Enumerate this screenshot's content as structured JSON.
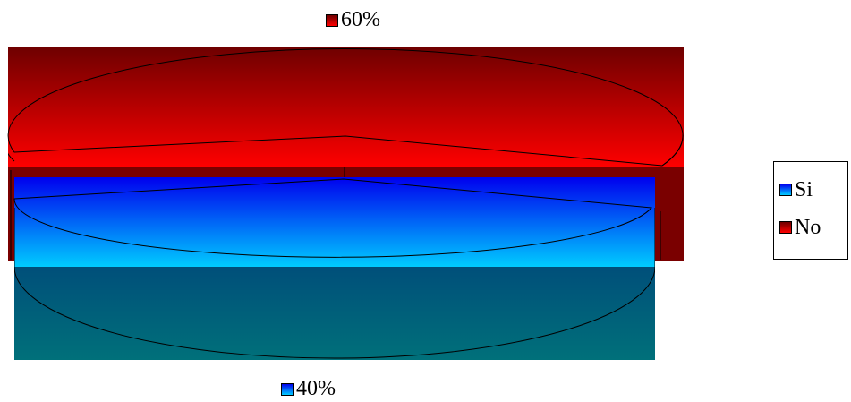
{
  "chart_data": {
    "type": "pie",
    "style": "3d-exploded",
    "slices": [
      {
        "name": "Si",
        "value": 40,
        "label": "40%",
        "color": "#00ccff"
      },
      {
        "name": "No",
        "value": 60,
        "label": "60%",
        "color": "#ff0000"
      }
    ],
    "legend": [
      "Si",
      "No"
    ],
    "legend_position": "right"
  },
  "colors": {
    "si_top": "#0000ee",
    "si_bottom": "#00ccff",
    "si_side": "#00607a",
    "no_top": "#6e0000",
    "no_bottom": "#ff0000",
    "no_side": "#8a0000"
  }
}
